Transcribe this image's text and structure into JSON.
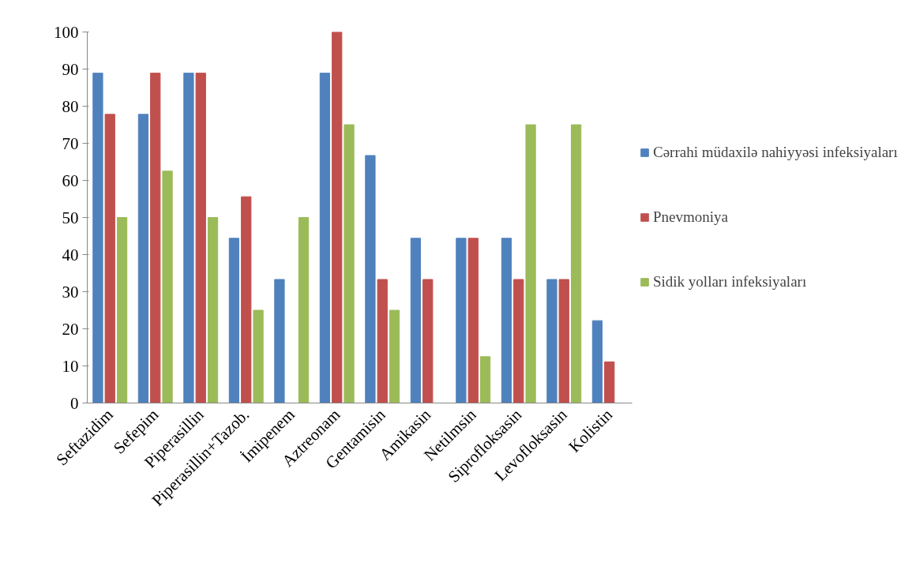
{
  "chart_data": {
    "type": "bar",
    "categories": [
      "Seftazidim",
      "Sefepim",
      "Piperasillin",
      "Piperasillin+Tazob.",
      "İmipenem",
      "Aztreonam",
      "Gentamisin",
      "Amikasin",
      "Netilmsin",
      "Siprofloksasin",
      "Levofloksasin",
      "Kolistin"
    ],
    "series": [
      {
        "name": "Cərrahi müdaxilə nahiyyəsi infeksiyaları",
        "color": "#4f81bd",
        "values": [
          88.9,
          77.8,
          88.9,
          44.4,
          33.3,
          88.9,
          66.7,
          44.4,
          44.4,
          44.4,
          33.3,
          22.2
        ]
      },
      {
        "name": "Pnevmoniya",
        "color": "#c0504d",
        "values": [
          77.8,
          88.9,
          88.9,
          55.6,
          0,
          100,
          33.3,
          33.3,
          44.4,
          33.3,
          33.3,
          11.1
        ]
      },
      {
        "name": "Sidik yolları infeksiyaları",
        "color": "#9bbb59",
        "values": [
          50,
          62.5,
          50,
          25,
          50,
          75,
          25,
          0,
          12.5,
          75,
          75,
          0
        ]
      }
    ],
    "ylim": [
      0,
      100
    ],
    "yticks": [
      0,
      10,
      20,
      30,
      40,
      50,
      60,
      70,
      80,
      90,
      100
    ],
    "grid": false,
    "legend": "right"
  }
}
